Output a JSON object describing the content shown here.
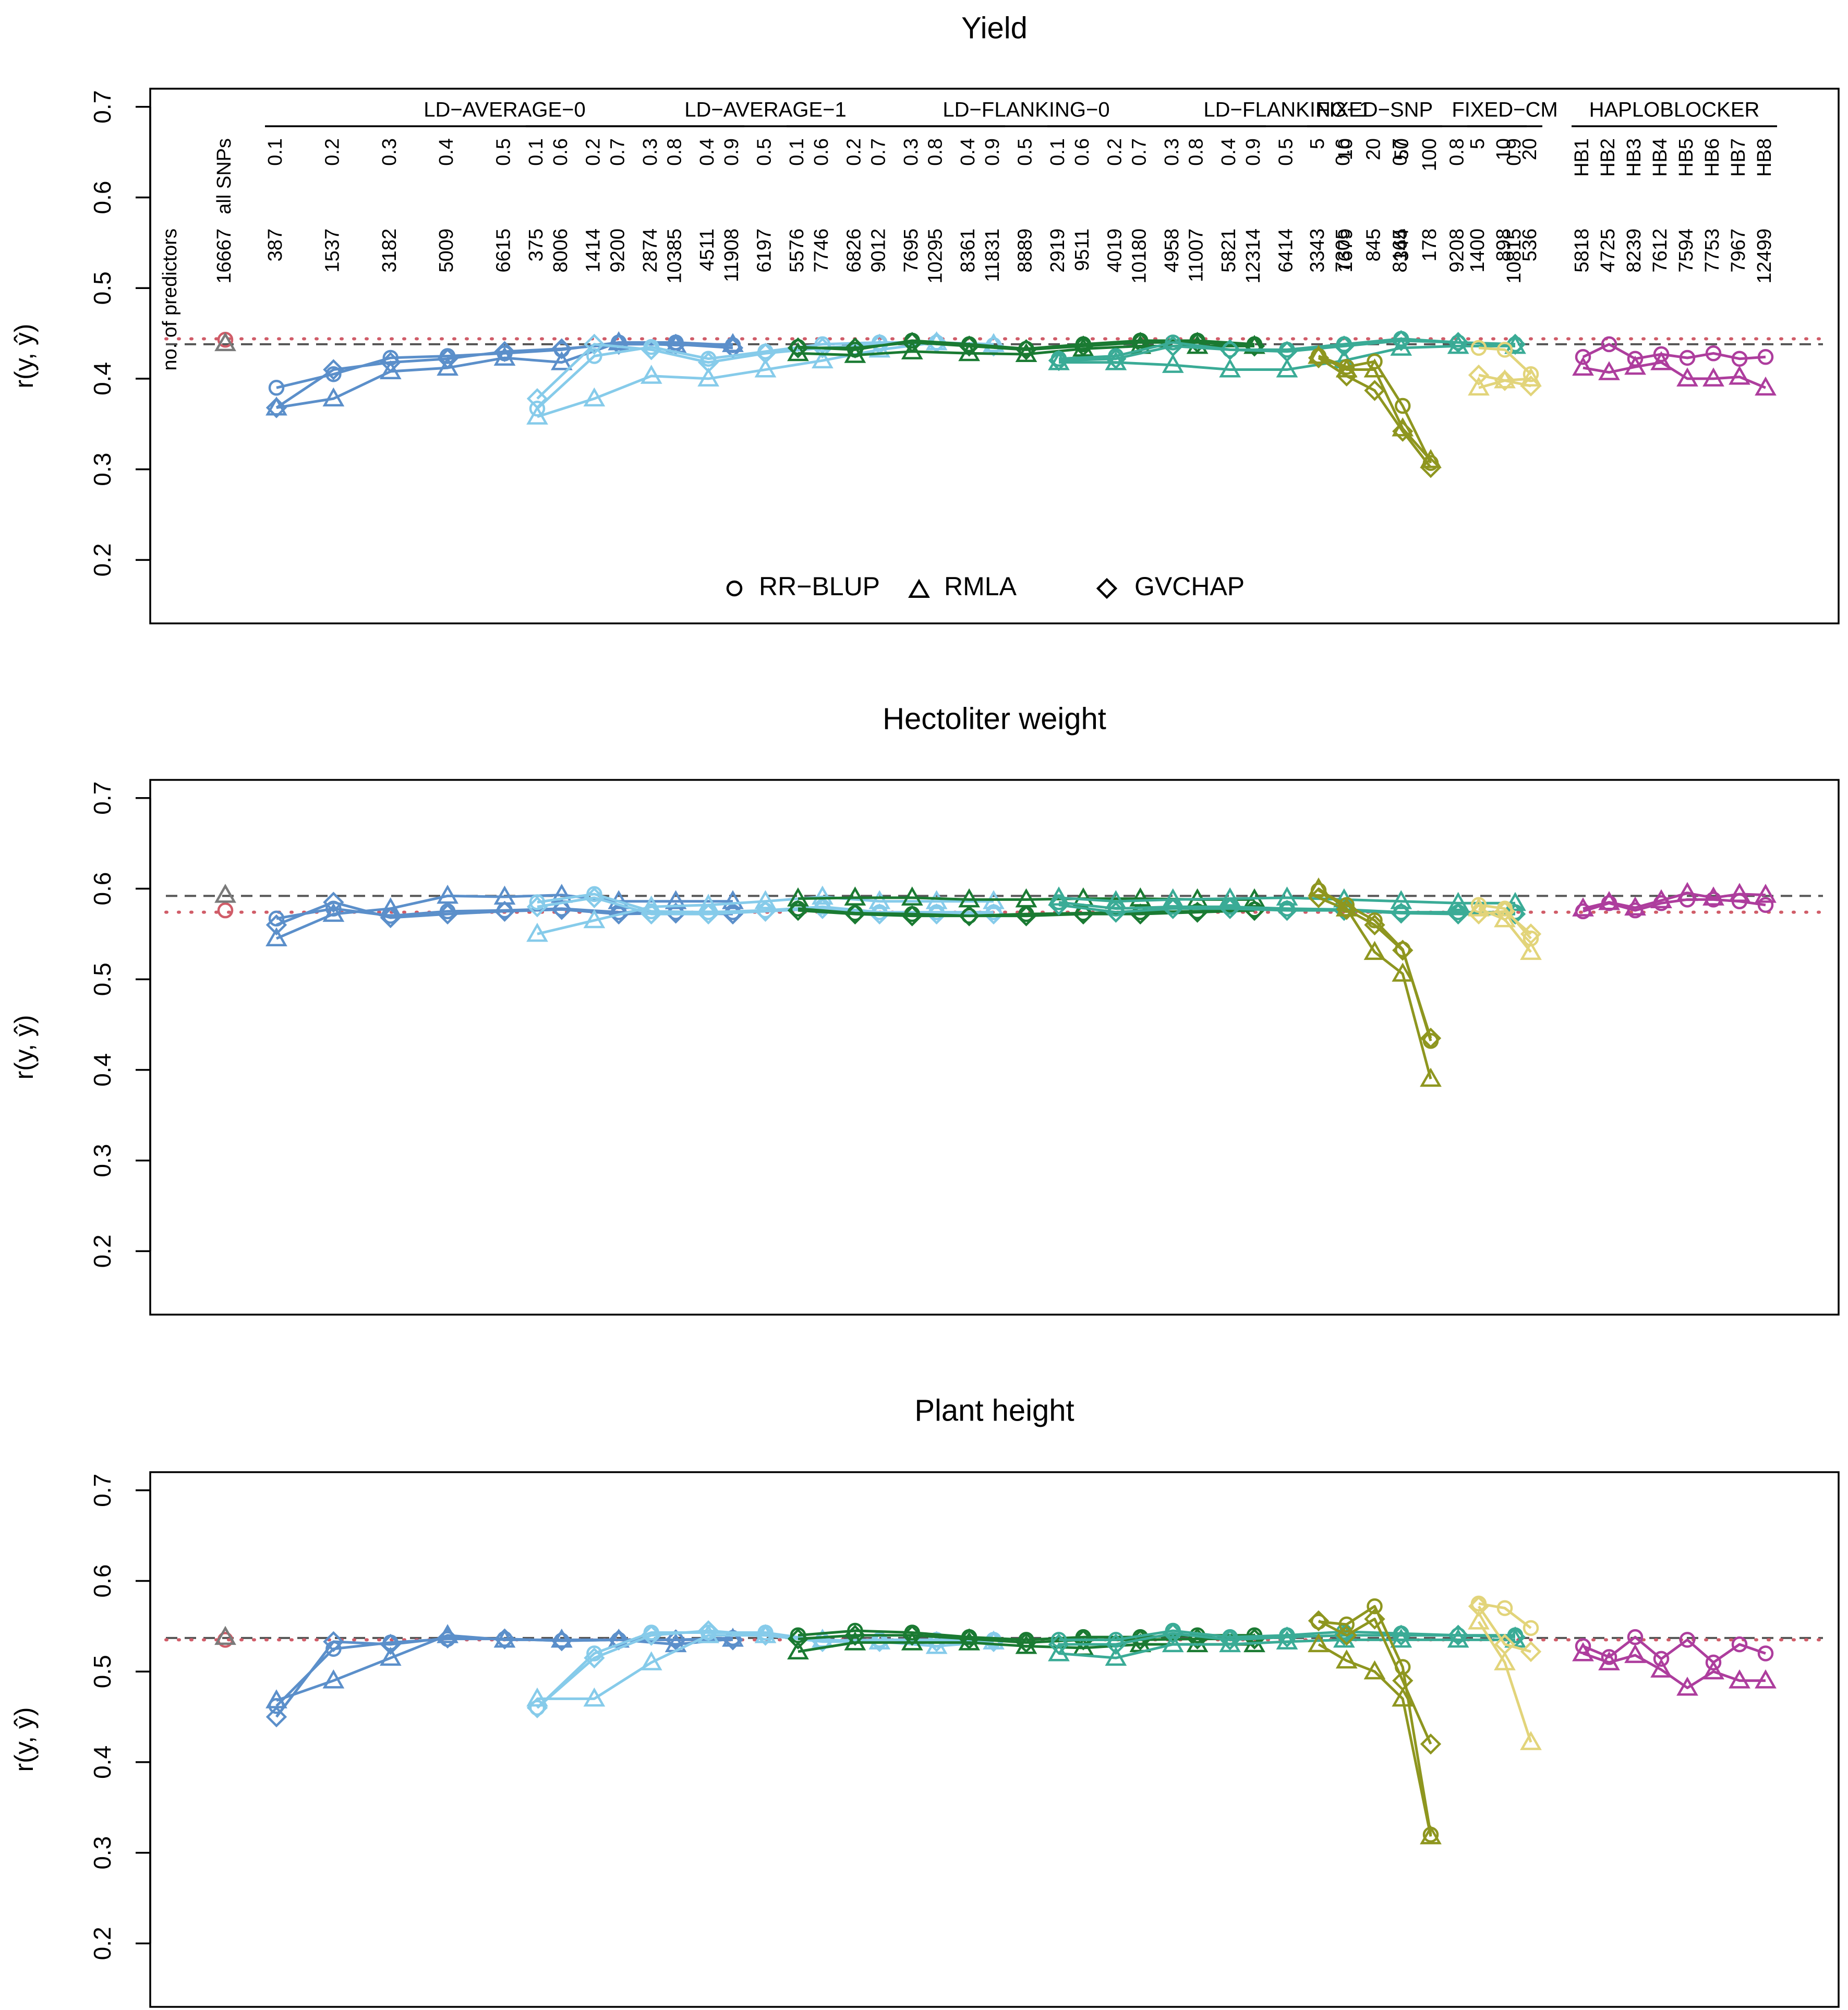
{
  "chart_data": {
    "type": "line",
    "ylabel": "r(y, ŷ)",
    "ylim": [
      0.13,
      0.72
    ],
    "yticks": [
      "0.2",
      "0.3",
      "0.4",
      "0.5",
      "0.6",
      "0.7"
    ],
    "colors": {
      "ld_average_0": "#5b8fca",
      "ld_average_1": "#86cbea",
      "ld_flanking_0": "#1a7a32",
      "ld_flanking_1": "#3aab96",
      "fixed_snp": "#8e961f",
      "fixed_cm": "#e2d47a",
      "haploblocker": "#ad3d9d",
      "allsnp_rrblup": "#d05c68",
      "allsnp_rmla": "#7a7a7a",
      "ref_rrblup": "#d05c68",
      "ref_rmla": "#555555"
    },
    "legend": {
      "rrblup": "RR−BLUP",
      "rmla": "RMLA",
      "gvchap": "GVCHAP"
    },
    "row_label": "no. of predictors",
    "allsnps_label": "all SNPs",
    "allsnps_count": "16667",
    "groups": [
      {
        "key": "ld_average_0",
        "name": "LD−AVERAGE−0",
        "settings": [
          "0.1",
          "0.2",
          "0.3",
          "0.4",
          "0.5",
          "0.6",
          "0.7",
          "0.8",
          "0.9"
        ],
        "counts": [
          "387",
          "1537",
          "3182",
          "5009",
          "6615",
          "8006",
          "9200",
          "10385",
          "11908"
        ]
      },
      {
        "key": "ld_average_1",
        "name": "LD−AVERAGE−1",
        "settings": [
          "0.1",
          "0.2",
          "0.3",
          "0.4",
          "0.5",
          "0.6",
          "0.7",
          "0.8",
          "0.9"
        ],
        "counts": [
          "375",
          "1414",
          "2874",
          "4511",
          "6197",
          "7746",
          "9012",
          "10295",
          "11831"
        ]
      },
      {
        "key": "ld_flanking_0",
        "name": "LD−FLANKING−0",
        "settings": [
          "0.1",
          "0.2",
          "0.3",
          "0.4",
          "0.5",
          "0.6",
          "0.7",
          "0.8",
          "0.9"
        ],
        "counts": [
          "5576",
          "6826",
          "7695",
          "8361",
          "8889",
          "9511",
          "10180",
          "11007",
          "12314"
        ]
      },
      {
        "key": "ld_flanking_1",
        "name": "LD−FLANKING−1",
        "settings": [
          "0.1",
          "0.2",
          "0.3",
          "0.4",
          "0.5",
          "0.6",
          "0.7",
          "0.8",
          "0.9"
        ],
        "counts": [
          "2919",
          "4019",
          "4958",
          "5821",
          "6414",
          "7305",
          "8165",
          "9208",
          "10815"
        ]
      },
      {
        "key": "fixed_snp",
        "name": "FIXED−SNP",
        "settings": [
          "5",
          "10",
          "20",
          "50",
          "100"
        ],
        "counts": [
          "3343",
          "1679",
          "845",
          "344",
          "178"
        ]
      },
      {
        "key": "fixed_cm",
        "name": "FIXED−CM",
        "settings": [
          "5",
          "10",
          "20"
        ],
        "counts": [
          "1400",
          "898",
          "536"
        ]
      },
      {
        "key": "haploblocker",
        "name": "HAPLOBLOCKER",
        "settings": [
          "HB1",
          "HB2",
          "HB3",
          "HB4",
          "HB5",
          "HB6",
          "HB7",
          "HB8"
        ],
        "counts": [
          "5818",
          "4725",
          "8239",
          "7612",
          "7594",
          "7753",
          "7967",
          "12499"
        ]
      }
    ],
    "panels": [
      {
        "title": "Yield",
        "allsnp": {
          "rrblup": 0.443,
          "rmla": 0.439
        },
        "ref": {
          "rrblup": 0.444,
          "rmla": 0.438
        },
        "series": {
          "ld_average_0": {
            "rrblup": [
              0.39,
              0.405,
              0.423,
              0.425,
              0.428,
              0.432,
              0.44,
              0.44,
              0.437
            ],
            "rmla": [
              0.368,
              0.378,
              0.408,
              0.412,
              0.423,
              0.418,
              0.44,
              0.437,
              0.438
            ],
            "gvchap": [
              0.368,
              0.41,
              0.418,
              0.422,
              0.43,
              0.433,
              0.438,
              0.438,
              0.434
            ]
          },
          "ld_average_1": {
            "rrblup": [
              0.367,
              0.425,
              0.435,
              0.422,
              0.43,
              0.438,
              0.44,
              0.44,
              0.437
            ],
            "rmla": [
              0.358,
              0.378,
              0.403,
              0.4,
              0.41,
              0.42,
              0.432,
              0.44,
              0.438
            ],
            "gvchap": [
              0.378,
              0.438,
              0.432,
              0.418,
              0.428,
              0.434,
              0.438,
              0.44,
              0.436
            ]
          },
          "ld_flanking_0": {
            "rrblup": [
              0.435,
              0.432,
              0.442,
              0.438,
              0.433,
              0.438,
              0.442,
              0.442,
              0.438
            ],
            "rmla": [
              0.428,
              0.426,
              0.43,
              0.428,
              0.427,
              0.433,
              0.436,
              0.436,
              0.436
            ],
            "gvchap": [
              0.434,
              0.434,
              0.44,
              0.436,
              0.432,
              0.436,
              0.44,
              0.44,
              0.436
            ]
          },
          "ld_flanking_1": {
            "rrblup": [
              0.422,
              0.425,
              0.44,
              0.432,
              0.432,
              0.438,
              0.444,
              0.44,
              0.438
            ],
            "rmla": [
              0.418,
              0.418,
              0.415,
              0.41,
              0.41,
              0.42,
              0.434,
              0.436,
              0.436
            ],
            "gvchap": [
              0.42,
              0.422,
              0.436,
              0.432,
              0.43,
              0.436,
              0.442,
              0.44,
              0.438
            ]
          },
          "fixed_snp": {
            "rrblup": [
              0.425,
              0.413,
              0.419,
              0.37,
              0.307
            ],
            "rmla": [
              0.425,
              0.41,
              0.41,
              0.345,
              0.31
            ],
            "gvchap": [
              0.423,
              0.403,
              0.387,
              0.342,
              0.302
            ]
          },
          "fixed_cm": {
            "rrblup": [
              0.434,
              0.432,
              0.405
            ],
            "rmla": [
              0.39,
              0.398,
              0.4
            ],
            "gvchap": [
              0.404,
              0.398,
              0.392
            ]
          },
          "haploblocker": {
            "rrblup": [
              0.424,
              0.438,
              0.422,
              0.427,
              0.423,
              0.428,
              0.422,
              0.424
            ],
            "rmla": [
              0.412,
              0.407,
              0.413,
              0.418,
              0.4,
              0.4,
              0.402,
              0.39
            ],
            "gvchap": [
              null,
              null,
              null,
              null,
              null,
              null,
              null,
              null
            ]
          }
        }
      },
      {
        "title": "Hectoliter weight",
        "allsnp": {
          "rrblup": 0.576,
          "rmla": 0.593
        },
        "ref": {
          "rrblup": 0.574,
          "rmla": 0.592
        },
        "series": {
          "ld_average_0": {
            "rrblup": [
              0.567,
              0.578,
              0.57,
              0.575,
              0.576,
              0.578,
              0.574,
              0.574,
              0.574
            ],
            "rmla": [
              0.545,
              0.572,
              0.578,
              0.592,
              0.591,
              0.593,
              0.586,
              0.586,
              0.586
            ],
            "gvchap": [
              0.56,
              0.585,
              0.568,
              0.572,
              0.575,
              0.577,
              0.572,
              0.573,
              0.572
            ]
          },
          "ld_average_1": {
            "rrblup": [
              0.585,
              0.594,
              0.575,
              0.574,
              0.576,
              0.58,
              0.574,
              0.574,
              0.574
            ],
            "rmla": [
              0.55,
              0.565,
              0.58,
              0.582,
              0.586,
              0.591,
              0.586,
              0.586,
              0.586
            ],
            "gvchap": [
              0.58,
              0.59,
              0.572,
              0.572,
              0.575,
              0.578,
              0.572,
              0.572,
              0.572
            ]
          },
          "ld_flanking_0": {
            "rrblup": [
              0.578,
              0.573,
              0.572,
              0.57,
              0.572,
              0.573,
              0.574,
              0.575,
              0.577
            ],
            "rmla": [
              0.589,
              0.59,
              0.59,
              0.588,
              0.588,
              0.589,
              0.589,
              0.588,
              0.588
            ],
            "gvchap": [
              0.576,
              0.572,
              0.57,
              0.57,
              0.57,
              0.572,
              0.572,
              0.574,
              0.576
            ]
          },
          "ld_flanking_1": {
            "rrblup": [
              0.585,
              0.578,
              0.58,
              0.58,
              0.578,
              0.577,
              0.574,
              0.574,
              0.574
            ],
            "rmla": [
              0.59,
              0.586,
              0.588,
              0.589,
              0.59,
              0.588,
              0.586,
              0.584,
              0.584
            ],
            "gvchap": [
              0.582,
              0.574,
              0.578,
              0.578,
              0.576,
              0.576,
              0.573,
              0.572,
              0.572
            ]
          },
          "fixed_snp": {
            "rrblup": [
              0.598,
              0.582,
              0.565,
              0.533,
              0.432
            ],
            "rmla": [
              0.6,
              0.578,
              0.53,
              0.506,
              0.39
            ],
            "gvchap": [
              0.59,
              0.577,
              0.56,
              0.532,
              0.435
            ]
          },
          "fixed_cm": {
            "rrblup": [
              0.582,
              0.578,
              0.545
            ],
            "rmla": [
              0.578,
              0.566,
              0.53
            ],
            "gvchap": [
              0.572,
              0.575,
              0.55
            ]
          },
          "haploblocker": {
            "rrblup": [
              0.575,
              0.584,
              0.576,
              0.584,
              0.588,
              0.588,
              0.586,
              0.582
            ],
            "rmla": [
              0.578,
              0.585,
              0.579,
              0.587,
              0.595,
              0.59,
              0.594,
              0.593
            ],
            "gvchap": [
              null,
              null,
              null,
              null,
              null,
              null,
              null,
              null
            ]
          }
        }
      },
      {
        "title": "Plant height",
        "allsnp": {
          "rrblup": 0.535,
          "rmla": 0.538
        },
        "ref": {
          "rrblup": 0.535,
          "rmla": 0.537
        },
        "series": {
          "ld_average_0": {
            "rrblup": [
              0.462,
              0.525,
              0.532,
              0.536,
              0.536,
              0.534,
              0.535,
              0.535,
              0.537
            ],
            "rmla": [
              0.468,
              0.49,
              0.515,
              0.54,
              0.535,
              0.535,
              0.535,
              0.53,
              0.536
            ],
            "gvchap": [
              0.45,
              0.533,
              0.53,
              0.537,
              0.536,
              0.534,
              0.535,
              0.535,
              0.535
            ]
          },
          "ld_average_1": {
            "rrblup": [
              0.46,
              0.52,
              0.543,
              0.543,
              0.543,
              0.534,
              0.535,
              0.535,
              0.535
            ],
            "rmla": [
              0.47,
              0.47,
              0.51,
              0.54,
              0.54,
              0.535,
              0.533,
              0.528,
              0.533
            ],
            "gvchap": [
              0.46,
              0.515,
              0.54,
              0.545,
              0.54,
              0.533,
              0.533,
              0.533,
              0.533
            ]
          },
          "ld_flanking_0": {
            "rrblup": [
              0.54,
              0.545,
              0.543,
              0.538,
              0.535,
              0.538,
              0.538,
              0.54,
              0.54
            ],
            "rmla": [
              0.522,
              0.532,
              0.532,
              0.532,
              0.528,
              0.526,
              0.53,
              0.53,
              0.53
            ],
            "gvchap": [
              0.536,
              0.54,
              0.54,
              0.536,
              0.532,
              0.535,
              0.535,
              0.536,
              0.536
            ]
          },
          "ld_flanking_1": {
            "rrblup": [
              0.535,
              0.535,
              0.545,
              0.538,
              0.54,
              0.544,
              0.542,
              0.54,
              0.54
            ],
            "rmla": [
              0.52,
              0.515,
              0.53,
              0.53,
              0.533,
              0.535,
              0.535,
              0.535,
              0.535
            ],
            "gvchap": [
              0.53,
              0.53,
              0.542,
              0.535,
              0.538,
              0.54,
              0.54,
              0.54,
              0.538
            ]
          },
          "fixed_snp": {
            "rrblup": [
              0.555,
              0.552,
              0.572,
              0.505,
              0.32
            ],
            "rmla": [
              0.53,
              0.512,
              0.5,
              0.47,
              0.318
            ],
            "gvchap": [
              0.556,
              0.54,
              0.558,
              0.49,
              0.42
            ]
          },
          "fixed_cm": {
            "rrblup": [
              0.575,
              0.57,
              0.548
            ],
            "rmla": [
              0.555,
              0.51,
              0.422
            ],
            "gvchap": [
              0.572,
              0.53,
              0.522
            ]
          },
          "haploblocker": {
            "rrblup": [
              0.528,
              0.516,
              0.538,
              0.514,
              0.535,
              0.51,
              0.53,
              0.52
            ],
            "rmla": [
              0.52,
              0.51,
              0.518,
              0.502,
              0.482,
              0.5,
              0.49,
              0.49
            ],
            "gvchap": [
              null,
              null,
              null,
              null,
              null,
              null,
              null,
              null
            ]
          }
        }
      }
    ]
  }
}
